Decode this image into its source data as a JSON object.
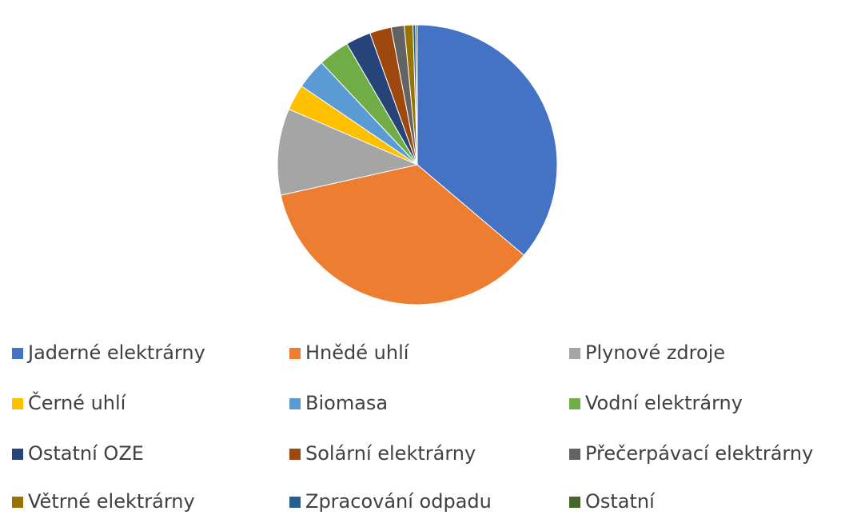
{
  "chart_data": {
    "type": "pie",
    "categories": [
      "Jaderné elektrárny",
      "Hnědé uhlí",
      "Plynové zdroje",
      "Černé uhlí",
      "Biomasa",
      "Vodní elektrárny",
      "Ostatní OZE",
      "Solární elektrárny",
      "Přečerpávací elektrárny",
      "Větrné elektrárny",
      "Zpracování odpadu",
      "Ostatní"
    ],
    "values": [
      36.2,
      35.3,
      10,
      3,
      3.5,
      3.6,
      2.9,
      2.5,
      1.5,
      1,
      0.3,
      0.2
    ],
    "colors": [
      "#4472c4",
      "#ed7d31",
      "#a5a5a5",
      "#ffc000",
      "#5b9bd5",
      "#70ad47",
      "#264478",
      "#9e480e",
      "#636363",
      "#997300",
      "#255e91",
      "#43682b"
    ],
    "legend": "bottom"
  }
}
